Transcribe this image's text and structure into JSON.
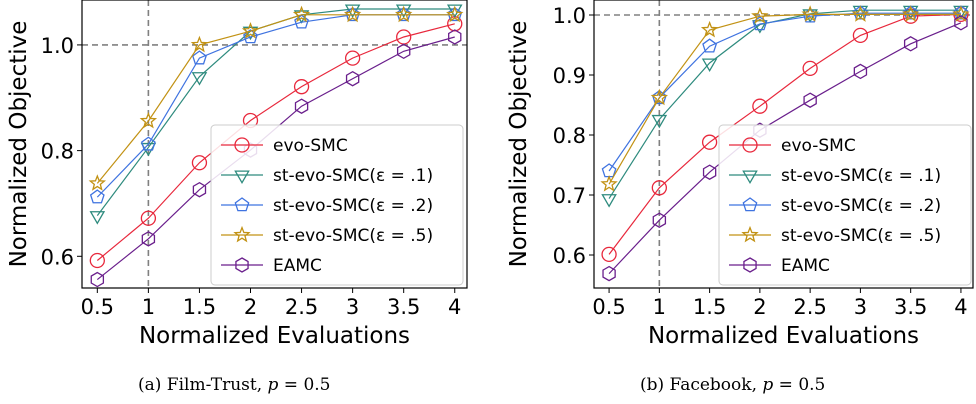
{
  "chart_data": [
    {
      "type": "line",
      "panel": "a",
      "xlabel": "Normalized Evaluations",
      "ylabel": "Normalized Objective",
      "x": [
        0.5,
        1,
        1.5,
        2,
        2.5,
        3,
        3.5,
        4
      ],
      "xticks": [
        "0.5",
        "1",
        "1.5",
        "2",
        "2.5",
        "3",
        "3.5",
        "4"
      ],
      "xlim": [
        0.35,
        4.12
      ],
      "ylim": [
        0.54,
        1.085
      ],
      "yticks": [
        0.6,
        0.8,
        1.0
      ],
      "ytick_labels": [
        "0.6",
        "0.8",
        "1.0"
      ],
      "reference_lines": {
        "x": 1,
        "y": 1.0
      },
      "legend_position": "lower-right",
      "grid": false,
      "series": [
        {
          "name": "evo-SMC",
          "marker": "circle",
          "color": "#e8283c",
          "values": [
            0.592,
            0.672,
            0.777,
            0.857,
            0.921,
            0.975,
            1.015,
            1.04
          ]
        },
        {
          "name": "st-evo-SMC(ε = .1)",
          "marker": "triangle-down",
          "color": "#2e8b7e",
          "values": [
            0.677,
            0.806,
            0.94,
            1.026,
            1.057,
            1.068,
            1.068,
            1.068
          ]
        },
        {
          "name": "st-evo-SMC(ε = .2)",
          "marker": "pentagon",
          "color": "#3f73e0",
          "values": [
            0.712,
            0.812,
            0.975,
            1.015,
            1.043,
            1.057,
            1.057,
            1.057
          ]
        },
        {
          "name": "st-evo-SMC(ε = .5)",
          "marker": "star",
          "color": "#c29214",
          "values": [
            0.738,
            0.856,
            1.0,
            1.026,
            1.057,
            1.057,
            1.057,
            1.057
          ]
        },
        {
          "name": "EAMC",
          "marker": "hexagon",
          "color": "#6a1f8c",
          "values": [
            0.556,
            0.633,
            0.726,
            0.801,
            0.884,
            0.936,
            0.988,
            1.015
          ]
        }
      ]
    },
    {
      "type": "line",
      "panel": "b",
      "xlabel": "Normalized Evaluations",
      "ylabel": "Normalized Objective",
      "x": [
        0.5,
        1,
        1.5,
        2,
        2.5,
        3,
        3.5,
        4
      ],
      "xticks": [
        "0.5",
        "1",
        "1.5",
        "2",
        "2.5",
        "3",
        "3.5",
        "4"
      ],
      "xlim": [
        0.35,
        4.12
      ],
      "ylim": [
        0.545,
        1.025
      ],
      "yticks": [
        0.6,
        0.7,
        0.8,
        0.9,
        1.0
      ],
      "ytick_labels": [
        "0.6",
        "0.7",
        "0.8",
        "0.9",
        "1.0"
      ],
      "reference_lines": {
        "x": 1,
        "y": 1.0
      },
      "legend_position": "lower-right",
      "grid": false,
      "series": [
        {
          "name": "evo-SMC",
          "marker": "circle",
          "color": "#e8283c",
          "values": [
            0.601,
            0.712,
            0.788,
            0.848,
            0.911,
            0.966,
            0.998,
            1.001
          ]
        },
        {
          "name": "st-evo-SMC(ε = .1)",
          "marker": "triangle-down",
          "color": "#2e8b7e",
          "values": [
            0.694,
            0.826,
            0.92,
            0.984,
            1.002,
            1.008,
            1.008,
            1.008
          ]
        },
        {
          "name": "st-evo-SMC(ε = .2)",
          "marker": "pentagon",
          "color": "#3f73e0",
          "values": [
            0.74,
            0.862,
            0.948,
            0.985,
            0.998,
            1.003,
            1.003,
            1.003
          ]
        },
        {
          "name": "st-evo-SMC(ε = .5)",
          "marker": "star",
          "color": "#c29214",
          "values": [
            0.718,
            0.862,
            0.975,
            0.998,
            1.001,
            1.001,
            1.001,
            1.001
          ]
        },
        {
          "name": "EAMC",
          "marker": "hexagon",
          "color": "#6a1f8c",
          "values": [
            0.569,
            0.658,
            0.738,
            0.808,
            0.858,
            0.906,
            0.952,
            0.987
          ]
        }
      ]
    }
  ],
  "captions": {
    "a": {
      "label": "(a) Film-Trust, ",
      "math_var": "p",
      "math_rest": " = 0.5"
    },
    "b": {
      "label": "(b) Facebook, ",
      "math_var": "p",
      "math_rest": " = 0.5"
    }
  }
}
